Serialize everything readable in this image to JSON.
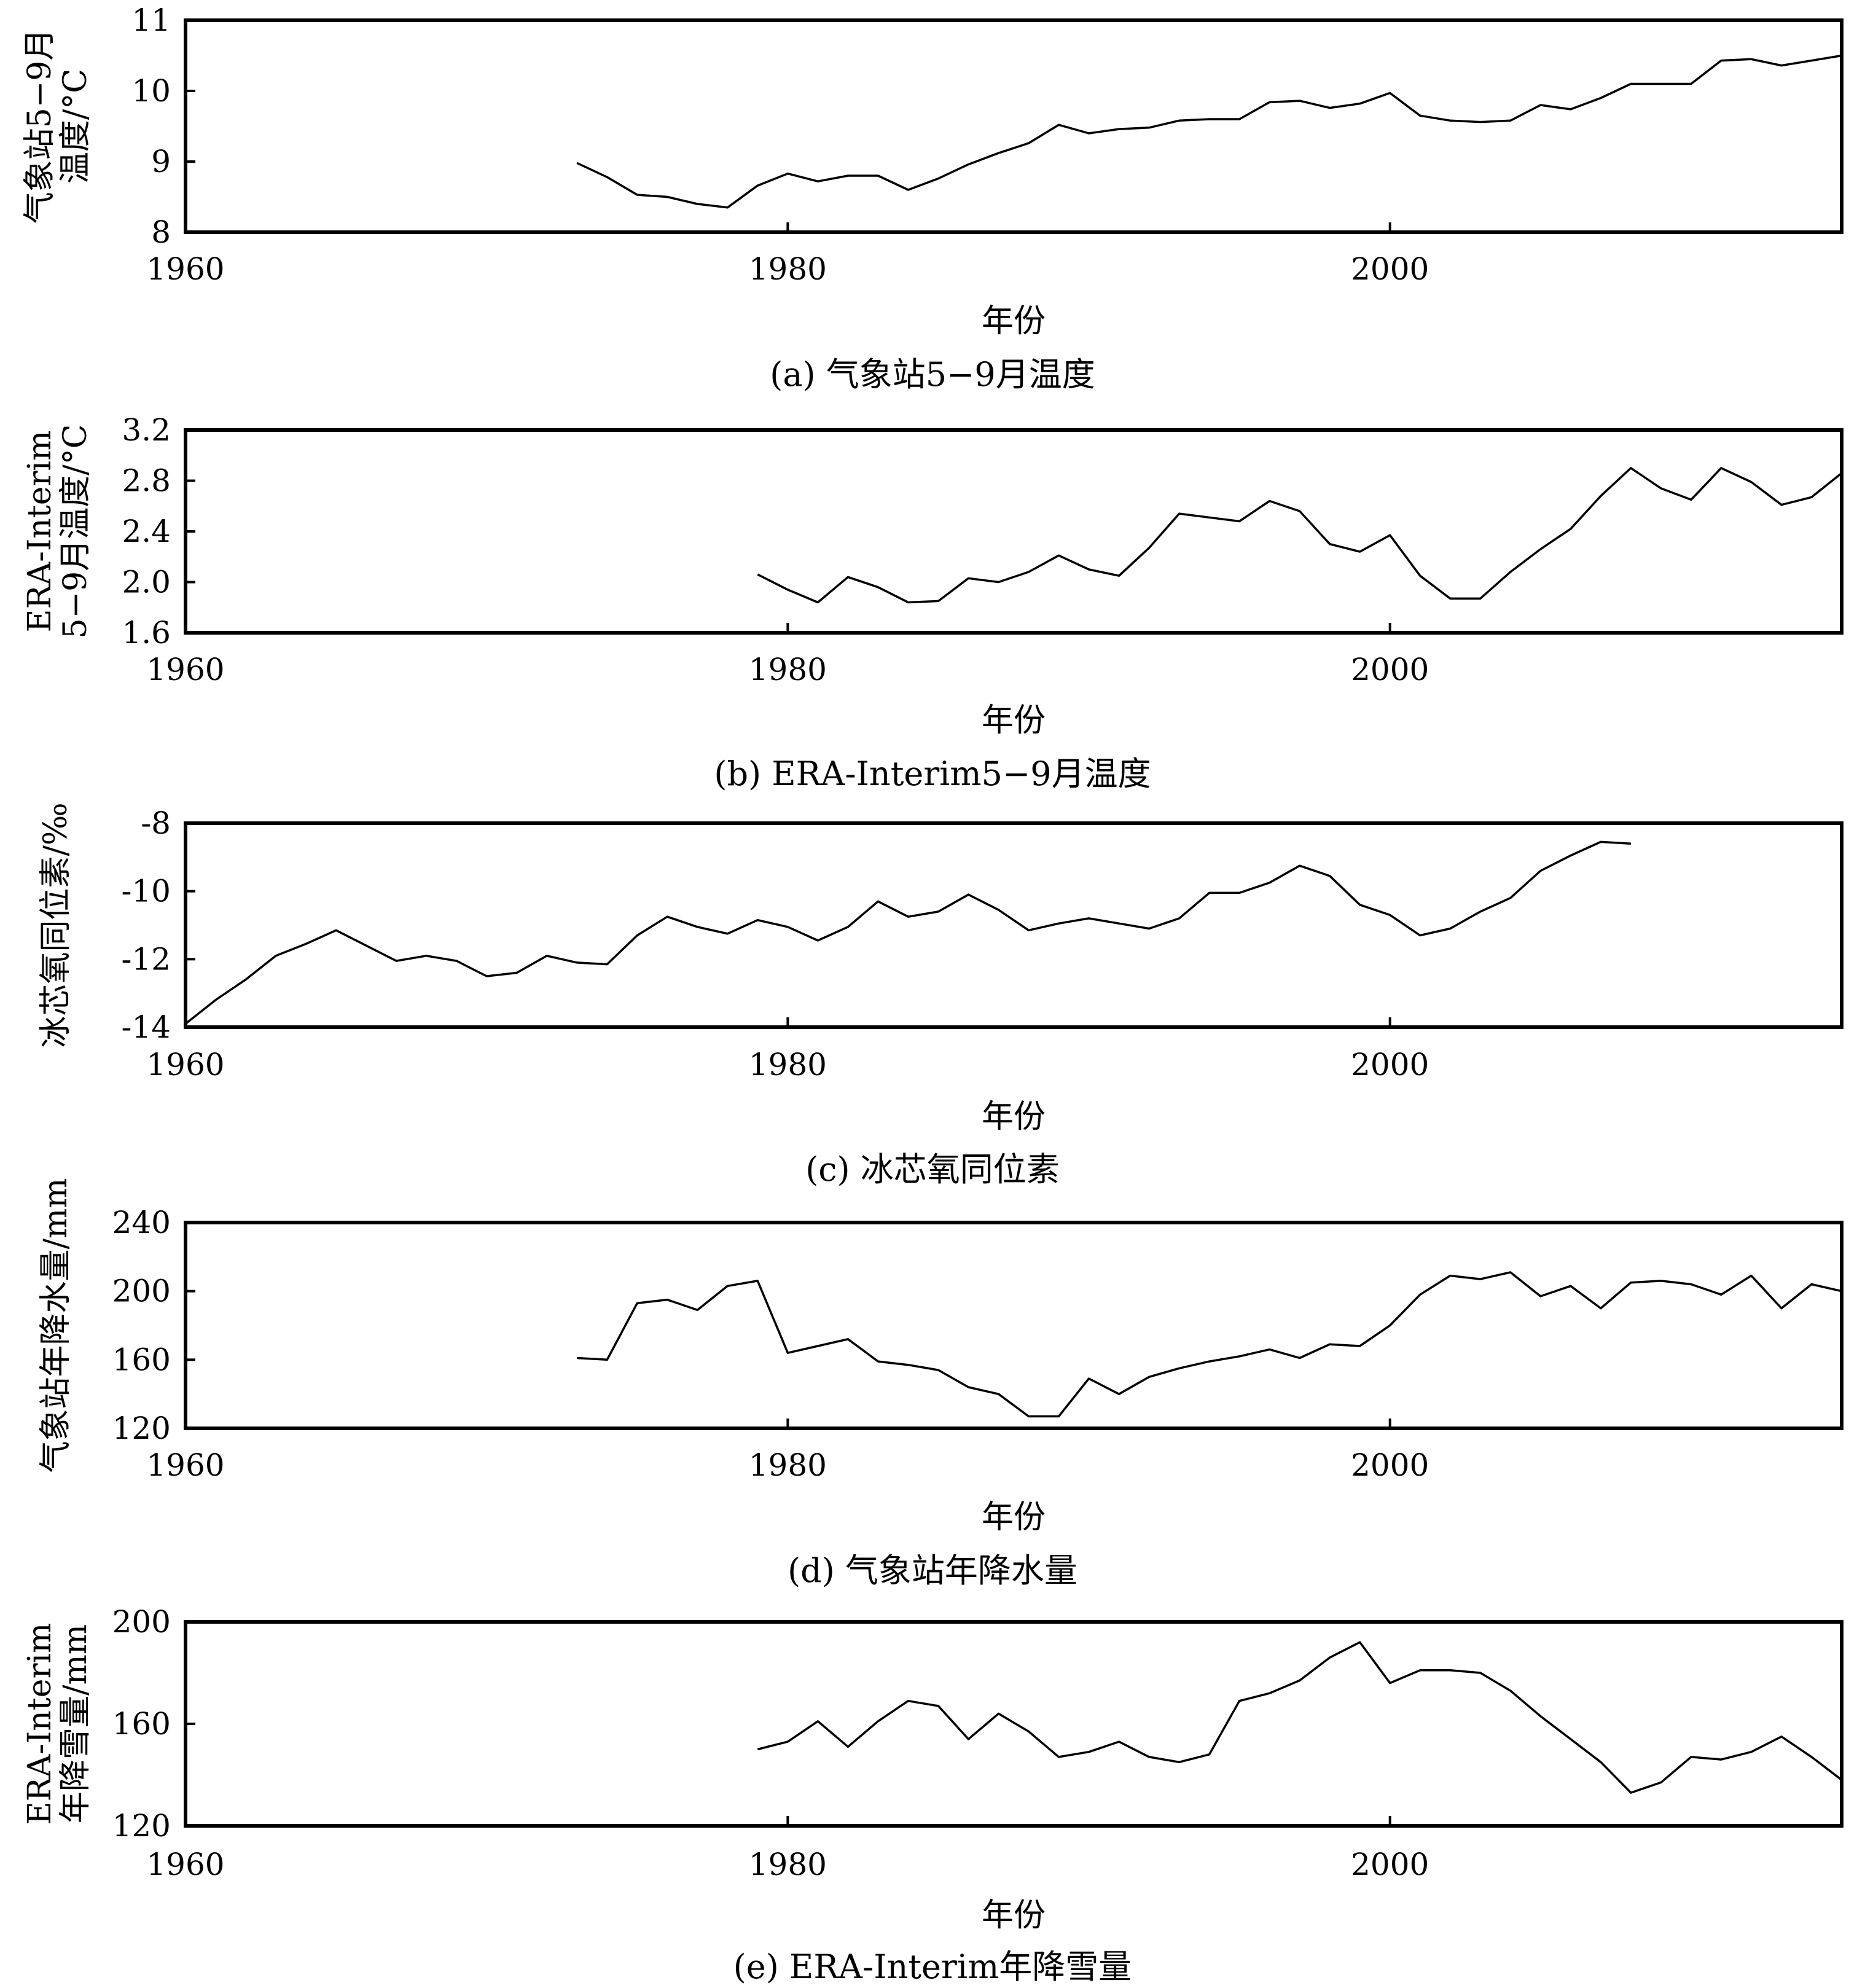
{
  "chart_data": [
    {
      "type": "line",
      "panel": "a",
      "caption": "(a) 气象站5−9月温度",
      "xlabel": "年份",
      "ylabel_lines": [
        "气象站5−9月",
        "温度/°C"
      ],
      "xlim": [
        1960,
        2015
      ],
      "ylim": [
        8,
        11
      ],
      "xticks": [
        "1960",
        "1980",
        "2000"
      ],
      "yticks": [
        "8",
        "9",
        "10",
        "11"
      ],
      "x": [
        1973,
        1974,
        1975,
        1976,
        1977,
        1978,
        1979,
        1980,
        1981,
        1982,
        1983,
        1984,
        1985,
        1986,
        1987,
        1988,
        1989,
        1990,
        1991,
        1992,
        1993,
        1994,
        1995,
        1996,
        1997,
        1998,
        1999,
        2000,
        2001,
        2002,
        2003,
        2004,
        2005,
        2006,
        2007,
        2008,
        2009,
        2010,
        2011,
        2012,
        2013,
        2014,
        2015
      ],
      "values": [
        8.98,
        8.78,
        8.53,
        8.5,
        8.4,
        8.35,
        8.66,
        8.83,
        8.72,
        8.8,
        8.8,
        8.6,
        8.76,
        8.96,
        9.12,
        9.26,
        9.52,
        9.4,
        9.46,
        9.48,
        9.58,
        9.6,
        9.6,
        9.84,
        9.86,
        9.76,
        9.82,
        9.97,
        9.65,
        9.58,
        9.56,
        9.58,
        9.8,
        9.74,
        9.9,
        10.1,
        10.1,
        10.1,
        10.43,
        10.45,
        10.36,
        10.43,
        10.5
      ]
    },
    {
      "type": "line",
      "panel": "b",
      "caption": "(b) ERA-Interim5−9月温度",
      "xlabel": "年份",
      "ylabel_lines": [
        "ERA-Interim",
        "5−9月温度/°C"
      ],
      "xlim": [
        1960,
        2015
      ],
      "ylim": [
        1.6,
        3.2
      ],
      "xticks": [
        "1960",
        "1980",
        "2000"
      ],
      "yticks": [
        "1.6",
        "2.0",
        "2.4",
        "2.8",
        "3.2"
      ],
      "x": [
        1979,
        1980,
        1981,
        1982,
        1983,
        1984,
        1985,
        1986,
        1987,
        1988,
        1989,
        1990,
        1991,
        1992,
        1993,
        1994,
        1995,
        1996,
        1997,
        1998,
        1999,
        2000,
        2001,
        2002,
        2003,
        2004,
        2005,
        2006,
        2007,
        2008,
        2009,
        2010,
        2011,
        2012,
        2013,
        2014,
        2015
      ],
      "values": [
        2.06,
        1.94,
        1.84,
        2.04,
        1.96,
        1.84,
        1.85,
        2.03,
        2.0,
        2.08,
        2.21,
        2.1,
        2.05,
        2.27,
        2.54,
        2.51,
        2.48,
        2.64,
        2.56,
        2.3,
        2.24,
        2.37,
        2.05,
        1.87,
        1.87,
        2.08,
        2.26,
        2.42,
        2.68,
        2.9,
        2.74,
        2.65,
        2.9,
        2.79,
        2.61,
        2.67,
        2.86
      ]
    },
    {
      "type": "line",
      "panel": "c",
      "caption": "(c) 冰芯氧同位素",
      "xlabel": "年份",
      "ylabel_lines": [
        "冰芯氧同位素/‰"
      ],
      "xlim": [
        1960,
        2015
      ],
      "ylim": [
        -14,
        -8
      ],
      "xticks": [
        "1960",
        "1980",
        "2000"
      ],
      "yticks": [
        "-14",
        "-12",
        "-10",
        "-8"
      ],
      "x": [
        1960,
        1961,
        1962,
        1963,
        1964,
        1965,
        1966,
        1967,
        1968,
        1969,
        1970,
        1971,
        1972,
        1973,
        1974,
        1975,
        1976,
        1977,
        1978,
        1979,
        1980,
        1981,
        1982,
        1983,
        1984,
        1985,
        1986,
        1987,
        1988,
        1989,
        1990,
        1991,
        1992,
        1993,
        1994,
        1995,
        1996,
        1997,
        1998,
        1999,
        2000,
        2001,
        2002,
        2003,
        2004,
        2005,
        2006,
        2007,
        2008
      ],
      "values": [
        -13.9,
        -13.2,
        -12.6,
        -11.9,
        -11.55,
        -11.15,
        -11.6,
        -12.05,
        -11.9,
        -12.05,
        -12.5,
        -12.4,
        -11.9,
        -12.1,
        -12.15,
        -11.3,
        -10.75,
        -11.05,
        -11.25,
        -10.85,
        -11.05,
        -11.45,
        -11.05,
        -10.3,
        -10.75,
        -10.6,
        -10.1,
        -10.55,
        -11.15,
        -10.95,
        -10.8,
        -10.95,
        -11.1,
        -10.8,
        -10.05,
        -10.05,
        -9.75,
        -9.25,
        -9.55,
        -10.4,
        -10.7,
        -11.3,
        -11.1,
        -10.6,
        -10.2,
        -9.4,
        -8.95,
        -8.55,
        -8.6
      ]
    },
    {
      "type": "line",
      "panel": "d",
      "caption": "(d) 气象站年降水量",
      "xlabel": "年份",
      "ylabel_lines": [
        "气象站年降水量/mm"
      ],
      "xlim": [
        1960,
        2015
      ],
      "ylim": [
        120,
        240
      ],
      "xticks": [
        "1960",
        "1980",
        "2000"
      ],
      "yticks": [
        "120",
        "160",
        "200",
        "240"
      ],
      "x": [
        1973,
        1974,
        1975,
        1976,
        1977,
        1978,
        1979,
        1980,
        1981,
        1982,
        1983,
        1984,
        1985,
        1986,
        1987,
        1988,
        1989,
        1990,
        1991,
        1992,
        1993,
        1994,
        1995,
        1996,
        1997,
        1998,
        1999,
        2000,
        2001,
        2002,
        2003,
        2004,
        2005,
        2006,
        2007,
        2008,
        2009,
        2010,
        2011,
        2012,
        2013,
        2014,
        2015
      ],
      "values": [
        161,
        160,
        193,
        195,
        189,
        203,
        206,
        164,
        168,
        172,
        159,
        157,
        154,
        144,
        140,
        127,
        127,
        149,
        140,
        150,
        155,
        159,
        162,
        166,
        161,
        169,
        168,
        180,
        198,
        209,
        207,
        211,
        197,
        203,
        190,
        205,
        206,
        204,
        198,
        209,
        190,
        204,
        200
      ]
    },
    {
      "type": "line",
      "panel": "e",
      "caption": "(e) ERA-Interim年降雪量",
      "xlabel": "年份",
      "ylabel_lines": [
        "ERA-Interim",
        "年降雪量/mm"
      ],
      "xlim": [
        1960,
        2015
      ],
      "ylim": [
        120,
        200
      ],
      "xticks": [
        "1960",
        "1980",
        "2000"
      ],
      "yticks": [
        "120",
        "160",
        "200"
      ],
      "x": [
        1979,
        1980,
        1981,
        1982,
        1983,
        1984,
        1985,
        1986,
        1987,
        1988,
        1989,
        1990,
        1991,
        1992,
        1993,
        1994,
        1995,
        1996,
        1997,
        1998,
        1999,
        2000,
        2001,
        2002,
        2003,
        2004,
        2005,
        2006,
        2007,
        2008,
        2009,
        2010,
        2011,
        2012,
        2013,
        2014,
        2015
      ],
      "values": [
        150,
        153,
        161,
        151,
        161,
        169,
        167,
        154,
        164,
        157,
        147,
        149,
        153,
        147,
        145,
        148,
        169,
        172,
        177,
        186,
        192,
        176,
        181,
        181,
        180,
        173,
        163,
        154,
        145,
        133,
        137,
        147,
        146,
        149,
        155,
        147,
        138
      ]
    }
  ]
}
